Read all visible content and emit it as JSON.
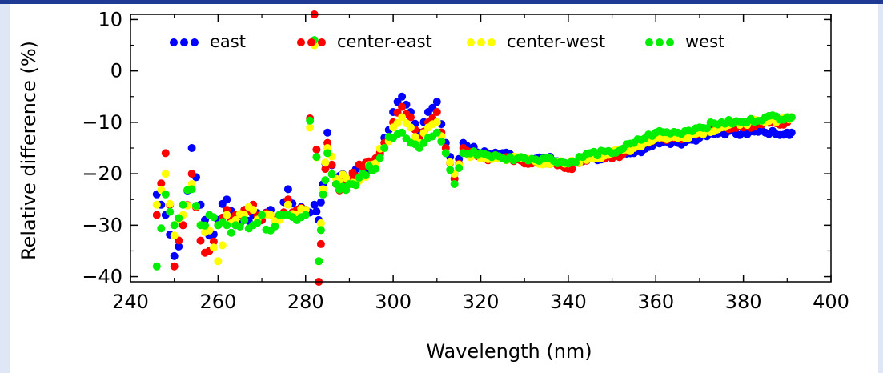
{
  "chart_data": {
    "type": "scatter",
    "title": "",
    "xlabel": "Wavelength (nm)",
    "ylabel": "Relative difference (%)",
    "xlim": [
      240,
      400
    ],
    "ylim": [
      -41,
      11
    ],
    "x_ticks": [
      240,
      260,
      280,
      300,
      320,
      340,
      360,
      380,
      400
    ],
    "y_ticks": [
      10,
      0,
      -10,
      -20,
      -30,
      -40
    ],
    "grid": false,
    "legend_position": "top",
    "series": [
      {
        "name": "east",
        "color": "#0000ff",
        "x": [
          246,
          248,
          250,
          252,
          254,
          256,
          258,
          260,
          262,
          264,
          266,
          268,
          270,
          272,
          274,
          276,
          278,
          280,
          282,
          283,
          284,
          285,
          287,
          290,
          293,
          296,
          298,
          300,
          302,
          304,
          306,
          308,
          310,
          312,
          314,
          316,
          320,
          325,
          330,
          335,
          340,
          345,
          350,
          355,
          360,
          365,
          370,
          375,
          380,
          385,
          390,
          391
        ],
        "y": [
          -24,
          -28,
          -36,
          -30,
          -15,
          -26,
          -32,
          -29,
          -25,
          -30,
          -29,
          -28,
          -29,
          -27,
          -28,
          -23,
          -27,
          -27,
          -26,
          -29,
          -22,
          -12,
          -22,
          -21,
          -20,
          -18,
          -13,
          -8,
          -5,
          -8,
          -12,
          -8,
          -6,
          -14,
          -20,
          -14,
          -16,
          -16,
          -17,
          -17,
          -18,
          -17,
          -17,
          -16,
          -14,
          -14,
          -13,
          -12,
          -12,
          -12,
          -12,
          -12
        ]
      },
      {
        "name": "center-east",
        "color": "#ff0000",
        "x": [
          246,
          248,
          250,
          252,
          254,
          256,
          258,
          260,
          262,
          264,
          266,
          268,
          270,
          272,
          274,
          276,
          278,
          280,
          282,
          283,
          284,
          285,
          287,
          290,
          293,
          296,
          298,
          300,
          302,
          304,
          306,
          308,
          310,
          312,
          314,
          316,
          320,
          325,
          330,
          335,
          340,
          345,
          350,
          355,
          360,
          365,
          370,
          375,
          380,
          385,
          390,
          391
        ],
        "y": [
          -28,
          -16,
          -38,
          -30,
          -20,
          -33,
          -35,
          -30,
          -27,
          -28,
          -27,
          -26,
          -29,
          -28,
          -28,
          -25,
          -27,
          -27,
          11,
          -41,
          -24,
          -14,
          -22,
          -21,
          -19,
          -17,
          -14,
          -10,
          -7,
          -9,
          -13,
          -10,
          -8,
          -15,
          -21,
          -15,
          -17,
          -17,
          -18,
          -18,
          -19,
          -17,
          -17,
          -15,
          -13,
          -13,
          -12,
          -11,
          -11,
          -10,
          -10,
          -9
        ]
      },
      {
        "name": "center-west",
        "color": "#ffff00",
        "x": [
          246,
          248,
          250,
          252,
          254,
          256,
          258,
          260,
          262,
          264,
          266,
          268,
          270,
          272,
          274,
          276,
          278,
          280,
          282,
          283,
          284,
          285,
          287,
          290,
          293,
          296,
          298,
          300,
          302,
          304,
          306,
          308,
          310,
          312,
          314,
          316,
          320,
          325,
          330,
          335,
          340,
          345,
          350,
          355,
          360,
          365,
          370,
          375,
          380,
          385,
          390,
          391
        ],
        "y": [
          -26,
          -20,
          -32,
          -28,
          -22,
          -30,
          -31,
          -37,
          -28,
          -29,
          -28,
          -27,
          -28,
          -28,
          -29,
          -26,
          -28,
          -27,
          5,
          -37,
          -23,
          -15,
          -21,
          -22,
          -20,
          -18,
          -15,
          -11,
          -9,
          -11,
          -14,
          -11,
          -10,
          -16,
          -20,
          -16,
          -17,
          -17,
          -17,
          -18,
          -18,
          -17,
          -16,
          -15,
          -13,
          -13,
          -12,
          -11,
          -10,
          -10,
          -9,
          -9
        ]
      },
      {
        "name": "west",
        "color": "#00ee00",
        "x": [
          246,
          248,
          250,
          252,
          254,
          256,
          258,
          260,
          262,
          264,
          266,
          268,
          270,
          272,
          274,
          276,
          278,
          280,
          282,
          283,
          284,
          285,
          287,
          290,
          293,
          296,
          298,
          300,
          302,
          304,
          306,
          308,
          310,
          312,
          314,
          316,
          320,
          325,
          330,
          335,
          340,
          345,
          350,
          355,
          360,
          365,
          370,
          375,
          380,
          385,
          390,
          391
        ],
        "y": [
          -38,
          -24,
          -30,
          -26,
          -23,
          -30,
          -28,
          -30,
          -30,
          -30,
          -29,
          -30,
          -28,
          -31,
          -28,
          -28,
          -29,
          -28,
          6,
          -37,
          -24,
          -16,
          -22,
          -22,
          -20,
          -19,
          -15,
          -13,
          -12,
          -14,
          -15,
          -13,
          -12,
          -16,
          -22,
          -16,
          -16,
          -17,
          -17,
          -17,
          -18,
          -16,
          -16,
          -14,
          -12,
          -12,
          -11,
          -10,
          -10,
          -9,
          -9,
          -9
        ]
      }
    ]
  }
}
